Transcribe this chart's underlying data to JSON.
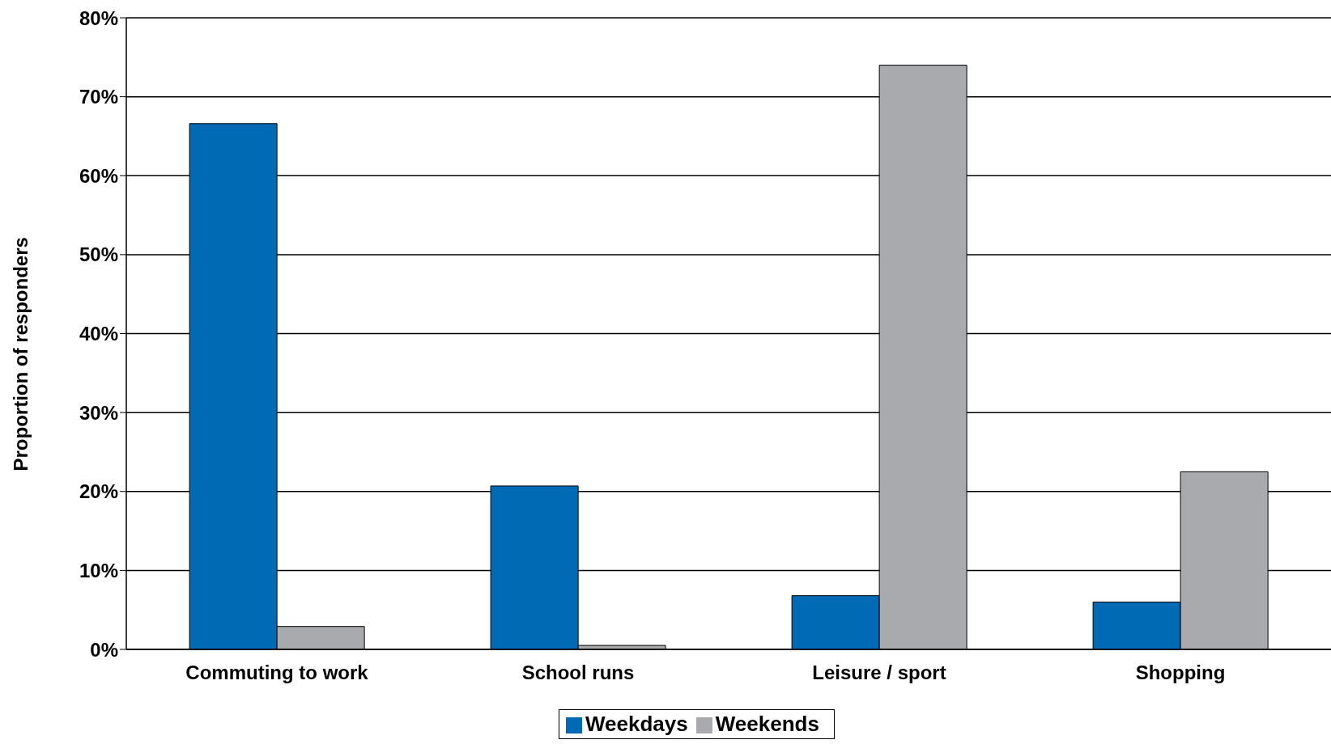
{
  "chart_data": {
    "type": "bar",
    "ylabel": "Proportion of responders",
    "categories": [
      "Commuting to work",
      "School runs",
      "Leisure / sport",
      "Shopping"
    ],
    "series": [
      {
        "name": "Weekdays",
        "color": "#006ab4",
        "values": [
          66.6,
          20.7,
          6.8,
          6.0
        ]
      },
      {
        "name": "Weekends",
        "color": "#a9aaae",
        "values": [
          2.9,
          0.5,
          74.0,
          22.5
        ]
      }
    ],
    "ylim": [
      0,
      80
    ],
    "yticks": [
      {
        "value": 0,
        "label": "0%"
      },
      {
        "value": 10,
        "label": "10%"
      },
      {
        "value": 20,
        "label": "20%"
      },
      {
        "value": 30,
        "label": "30%"
      },
      {
        "value": 40,
        "label": "40%"
      },
      {
        "value": 50,
        "label": "50%"
      },
      {
        "value": 60,
        "label": "60%"
      },
      {
        "value": 70,
        "label": "70%"
      },
      {
        "value": 80,
        "label": "80%"
      }
    ],
    "grid": "y",
    "legend": "bottom"
  }
}
